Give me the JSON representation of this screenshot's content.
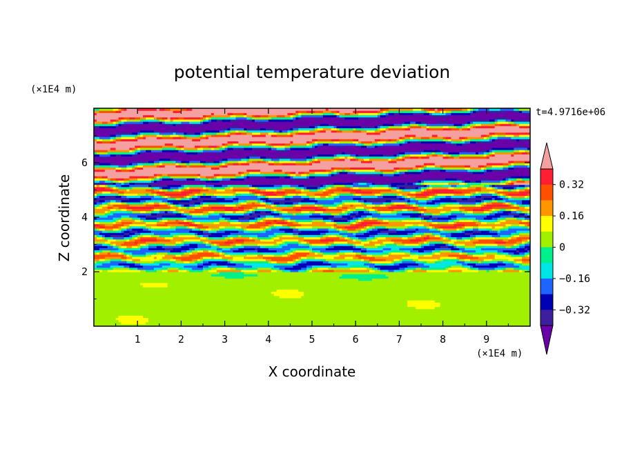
{
  "chart_data": {
    "type": "heatmap",
    "title": "potential temperature deviation",
    "xlabel": "X coordinate",
    "ylabel": "Z coordinate",
    "x_units": "(×1E4 m)",
    "y_units": "(×1E4 m)",
    "time_label": "t=4.9716e+06",
    "xlim": [
      0,
      10
    ],
    "ylim": [
      0,
      8
    ],
    "x_ticks": [
      "1",
      "2",
      "3",
      "4",
      "5",
      "6",
      "7",
      "8",
      "9"
    ],
    "y_ticks": [
      "2",
      "4",
      "6"
    ],
    "colorbar": {
      "tick_labels": [
        "0.32",
        "0.16",
        "0",
        "−0.16",
        "−0.32"
      ],
      "levels": [
        -0.4,
        -0.32,
        -0.24,
        -0.16,
        -0.08,
        0,
        0.08,
        0.16,
        0.24,
        0.32,
        0.4
      ],
      "colors": [
        "#6a00a8",
        "#3c1e9e",
        "#0000b4",
        "#1e64ff",
        "#00e6e6",
        "#00f08c",
        "#a0f000",
        "#ffff00",
        "#ff9600",
        "#ff5000",
        "#ff1e32",
        "#f4a0a0"
      ]
    },
    "bands": [
      {
        "z_min": 0.0,
        "z_max": 2.0,
        "description": "lower layer, mostly light green / green (0 to 0.08)"
      },
      {
        "z_min": 2.0,
        "z_max": 5.2,
        "description": "turbulent layer with mixed values from -0.32 to 0.32"
      },
      {
        "z_min": 5.2,
        "z_max": 8.0,
        "description": "upper layer alternating purple (< -0.32) and pink (> 0.4) bands"
      }
    ],
    "grid": false
  }
}
